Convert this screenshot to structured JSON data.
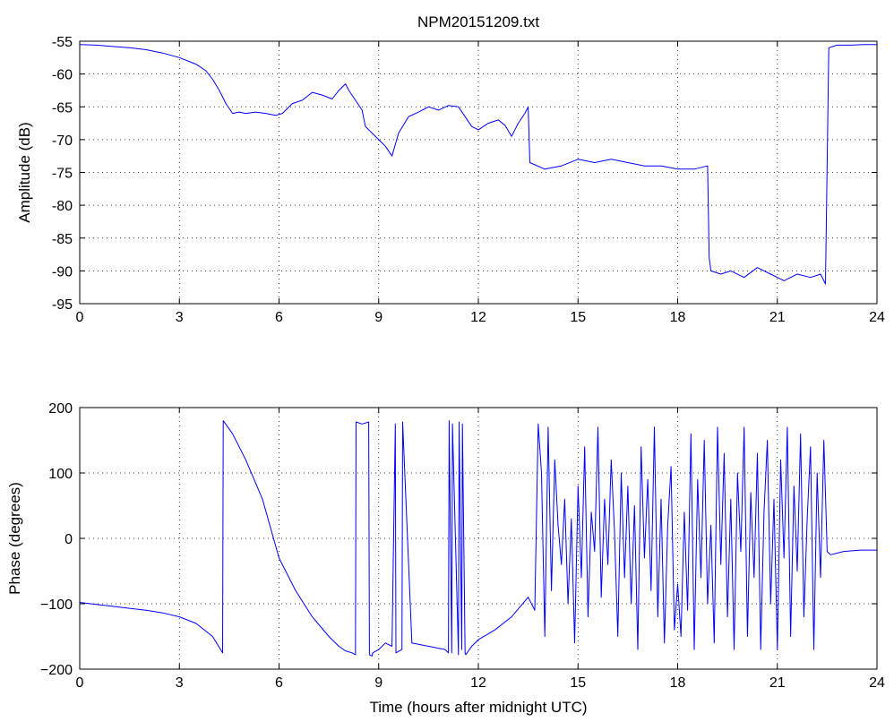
{
  "chart_data": [
    {
      "type": "line",
      "title": "NPM20151209.txt",
      "xlabel": "",
      "ylabel": "Amplitude (dB)",
      "xlim": [
        0,
        24
      ],
      "ylim": [
        -95,
        -55
      ],
      "xticks": [
        "0",
        "3",
        "6",
        "9",
        "12",
        "15",
        "18",
        "21",
        "24"
      ],
      "yticks": [
        "-55",
        "-60",
        "-65",
        "-70",
        "-75",
        "-80",
        "-85",
        "-90",
        "-95"
      ],
      "grid": true,
      "color": "#0000ff",
      "series": [
        {
          "x": [
            0,
            0.5,
            1,
            1.5,
            2,
            2.5,
            3,
            3.5,
            3.8,
            4.0,
            4.2,
            4.4,
            4.6,
            4.8,
            5.0,
            5.3,
            5.6,
            5.9,
            6.1,
            6.4,
            6.7,
            7.0,
            7.3,
            7.6,
            7.8,
            8.0,
            8.1,
            8.3,
            8.5,
            8.6,
            8.8,
            9.0,
            9.2,
            9.4,
            9.6,
            9.9,
            10.2,
            10.5,
            10.8,
            11.1,
            11.4,
            11.6,
            11.8,
            12.0,
            12.3,
            12.6,
            12.8,
            13.0,
            13.2,
            13.4,
            13.5,
            13.55,
            14,
            14.5,
            15,
            15.5,
            16,
            16.5,
            17,
            17.5,
            18,
            18.5,
            18.9,
            18.95,
            19.0,
            19.3,
            19.6,
            20.0,
            20.4,
            20.8,
            21.2,
            21.6,
            22.0,
            22.3,
            22.45,
            22.55,
            22.8,
            23.2,
            23.6,
            24
          ],
          "y": [
            -55.5,
            -55.6,
            -55.8,
            -56.0,
            -56.3,
            -56.8,
            -57.5,
            -58.5,
            -59.5,
            -60.8,
            -62.5,
            -64.5,
            -66.0,
            -65.8,
            -66.0,
            -65.8,
            -66.0,
            -66.3,
            -66.0,
            -64.5,
            -64.0,
            -62.8,
            -63.2,
            -63.8,
            -62.5,
            -61.5,
            -62.5,
            -64.0,
            -65.5,
            -68.0,
            -69.0,
            -70.0,
            -71.0,
            -72.5,
            -69.0,
            -66.5,
            -65.8,
            -65.0,
            -65.5,
            -64.8,
            -65.0,
            -66.5,
            -68.0,
            -68.5,
            -67.5,
            -67.0,
            -67.8,
            -69.5,
            -67.5,
            -66.0,
            -65.0,
            -73.5,
            -74.5,
            -74.0,
            -73.0,
            -73.5,
            -73.0,
            -73.5,
            -74.0,
            -74.0,
            -74.5,
            -74.5,
            -74.0,
            -88.0,
            -90.0,
            -90.5,
            -90.0,
            -91.0,
            -89.5,
            -90.5,
            -91.5,
            -90.5,
            -91.0,
            -90.5,
            -92.0,
            -56.0,
            -55.6,
            -55.6,
            -55.5,
            -55.5
          ]
        }
      ]
    },
    {
      "type": "line",
      "title": "",
      "xlabel": "Time (hours after midnight UTC)",
      "ylabel": "Phase (degrees)",
      "xlim": [
        0,
        24
      ],
      "ylim": [
        -200,
        200
      ],
      "xticks": [
        "0",
        "3",
        "6",
        "9",
        "12",
        "15",
        "18",
        "21",
        "24"
      ],
      "yticks": [
        "200",
        "100",
        "0",
        "−100",
        "−200"
      ],
      "grid": true,
      "color": "#0000ff",
      "series": [
        {
          "x": [
            0,
            0.5,
            1,
            1.5,
            2,
            2.5,
            3,
            3.5,
            4.0,
            4.3,
            4.32,
            4.6,
            5.0,
            5.5,
            6.0,
            6.5,
            7.0,
            7.5,
            7.8,
            8.0,
            8.2,
            8.3,
            8.32,
            8.5,
            8.7,
            8.72,
            8.8,
            8.82,
            9.0,
            9.2,
            9.4,
            9.5,
            9.52,
            9.7,
            9.72,
            10.0,
            10.5,
            11.0,
            11.1,
            11.12,
            11.2,
            11.22,
            11.4,
            11.42,
            11.5,
            11.52,
            11.6,
            11.62,
            11.8,
            12.0,
            12.5,
            13.0,
            13.5,
            13.7,
            13.8,
            13.9,
            14.0,
            14.1,
            14.2,
            14.3,
            14.4,
            14.5,
            14.6,
            14.7,
            14.8,
            14.9,
            15.0,
            15.1,
            15.2,
            15.3,
            15.4,
            15.5,
            15.6,
            15.7,
            15.8,
            15.9,
            16.0,
            16.1,
            16.2,
            16.3,
            16.4,
            16.5,
            16.6,
            16.7,
            16.8,
            16.9,
            17.0,
            17.1,
            17.2,
            17.3,
            17.4,
            17.5,
            17.6,
            17.7,
            17.8,
            17.9,
            18.0,
            18.1,
            18.2,
            18.3,
            18.4,
            18.5,
            18.6,
            18.7,
            18.8,
            18.9,
            19.0,
            19.1,
            19.2,
            19.3,
            19.4,
            19.5,
            19.6,
            19.7,
            19.8,
            19.9,
            20.0,
            20.1,
            20.2,
            20.3,
            20.4,
            20.5,
            20.6,
            20.7,
            20.8,
            20.9,
            21.0,
            21.1,
            21.2,
            21.3,
            21.4,
            21.5,
            21.6,
            21.7,
            21.8,
            21.9,
            22.0,
            22.1,
            22.2,
            22.3,
            22.4,
            22.5,
            22.6,
            23.0,
            23.5,
            24
          ],
          "y": [
            -98,
            -101,
            -104,
            -107,
            -110,
            -114,
            -120,
            -130,
            -150,
            -175,
            180,
            160,
            120,
            60,
            -30,
            -80,
            -120,
            -150,
            -165,
            -172,
            -175,
            -178,
            178,
            175,
            178,
            -178,
            -180,
            -175,
            -170,
            -160,
            -165,
            175,
            -175,
            -170,
            178,
            -160,
            -165,
            -170,
            -175,
            180,
            -175,
            175,
            -178,
            178,
            -170,
            175,
            -175,
            -178,
            -165,
            -155,
            -140,
            -120,
            -90,
            -110,
            175,
            100,
            -150,
            170,
            -80,
            120,
            20,
            -40,
            60,
            -100,
            30,
            -160,
            80,
            -60,
            140,
            -120,
            40,
            -20,
            170,
            -90,
            60,
            -40,
            120,
            10,
            -150,
            100,
            -60,
            80,
            -100,
            50,
            -170,
            140,
            -30,
            90,
            -80,
            170,
            -120,
            60,
            -160,
            20,
            110,
            -140,
            -70,
            -150,
            40,
            -110,
            160,
            -170,
            90,
            -60,
            150,
            -100,
            20,
            -160,
            170,
            -40,
            130,
            -120,
            60,
            -170,
            100,
            -20,
            170,
            -150,
            70,
            -60,
            130,
            -170,
            40,
            150,
            -100,
            60,
            -170,
            120,
            -30,
            170,
            -150,
            80,
            -50,
            160,
            -120,
            30,
            140,
            -170,
            100,
            -60,
            150,
            -20,
            -25,
            -20,
            -18,
            -18
          ]
        }
      ]
    }
  ]
}
